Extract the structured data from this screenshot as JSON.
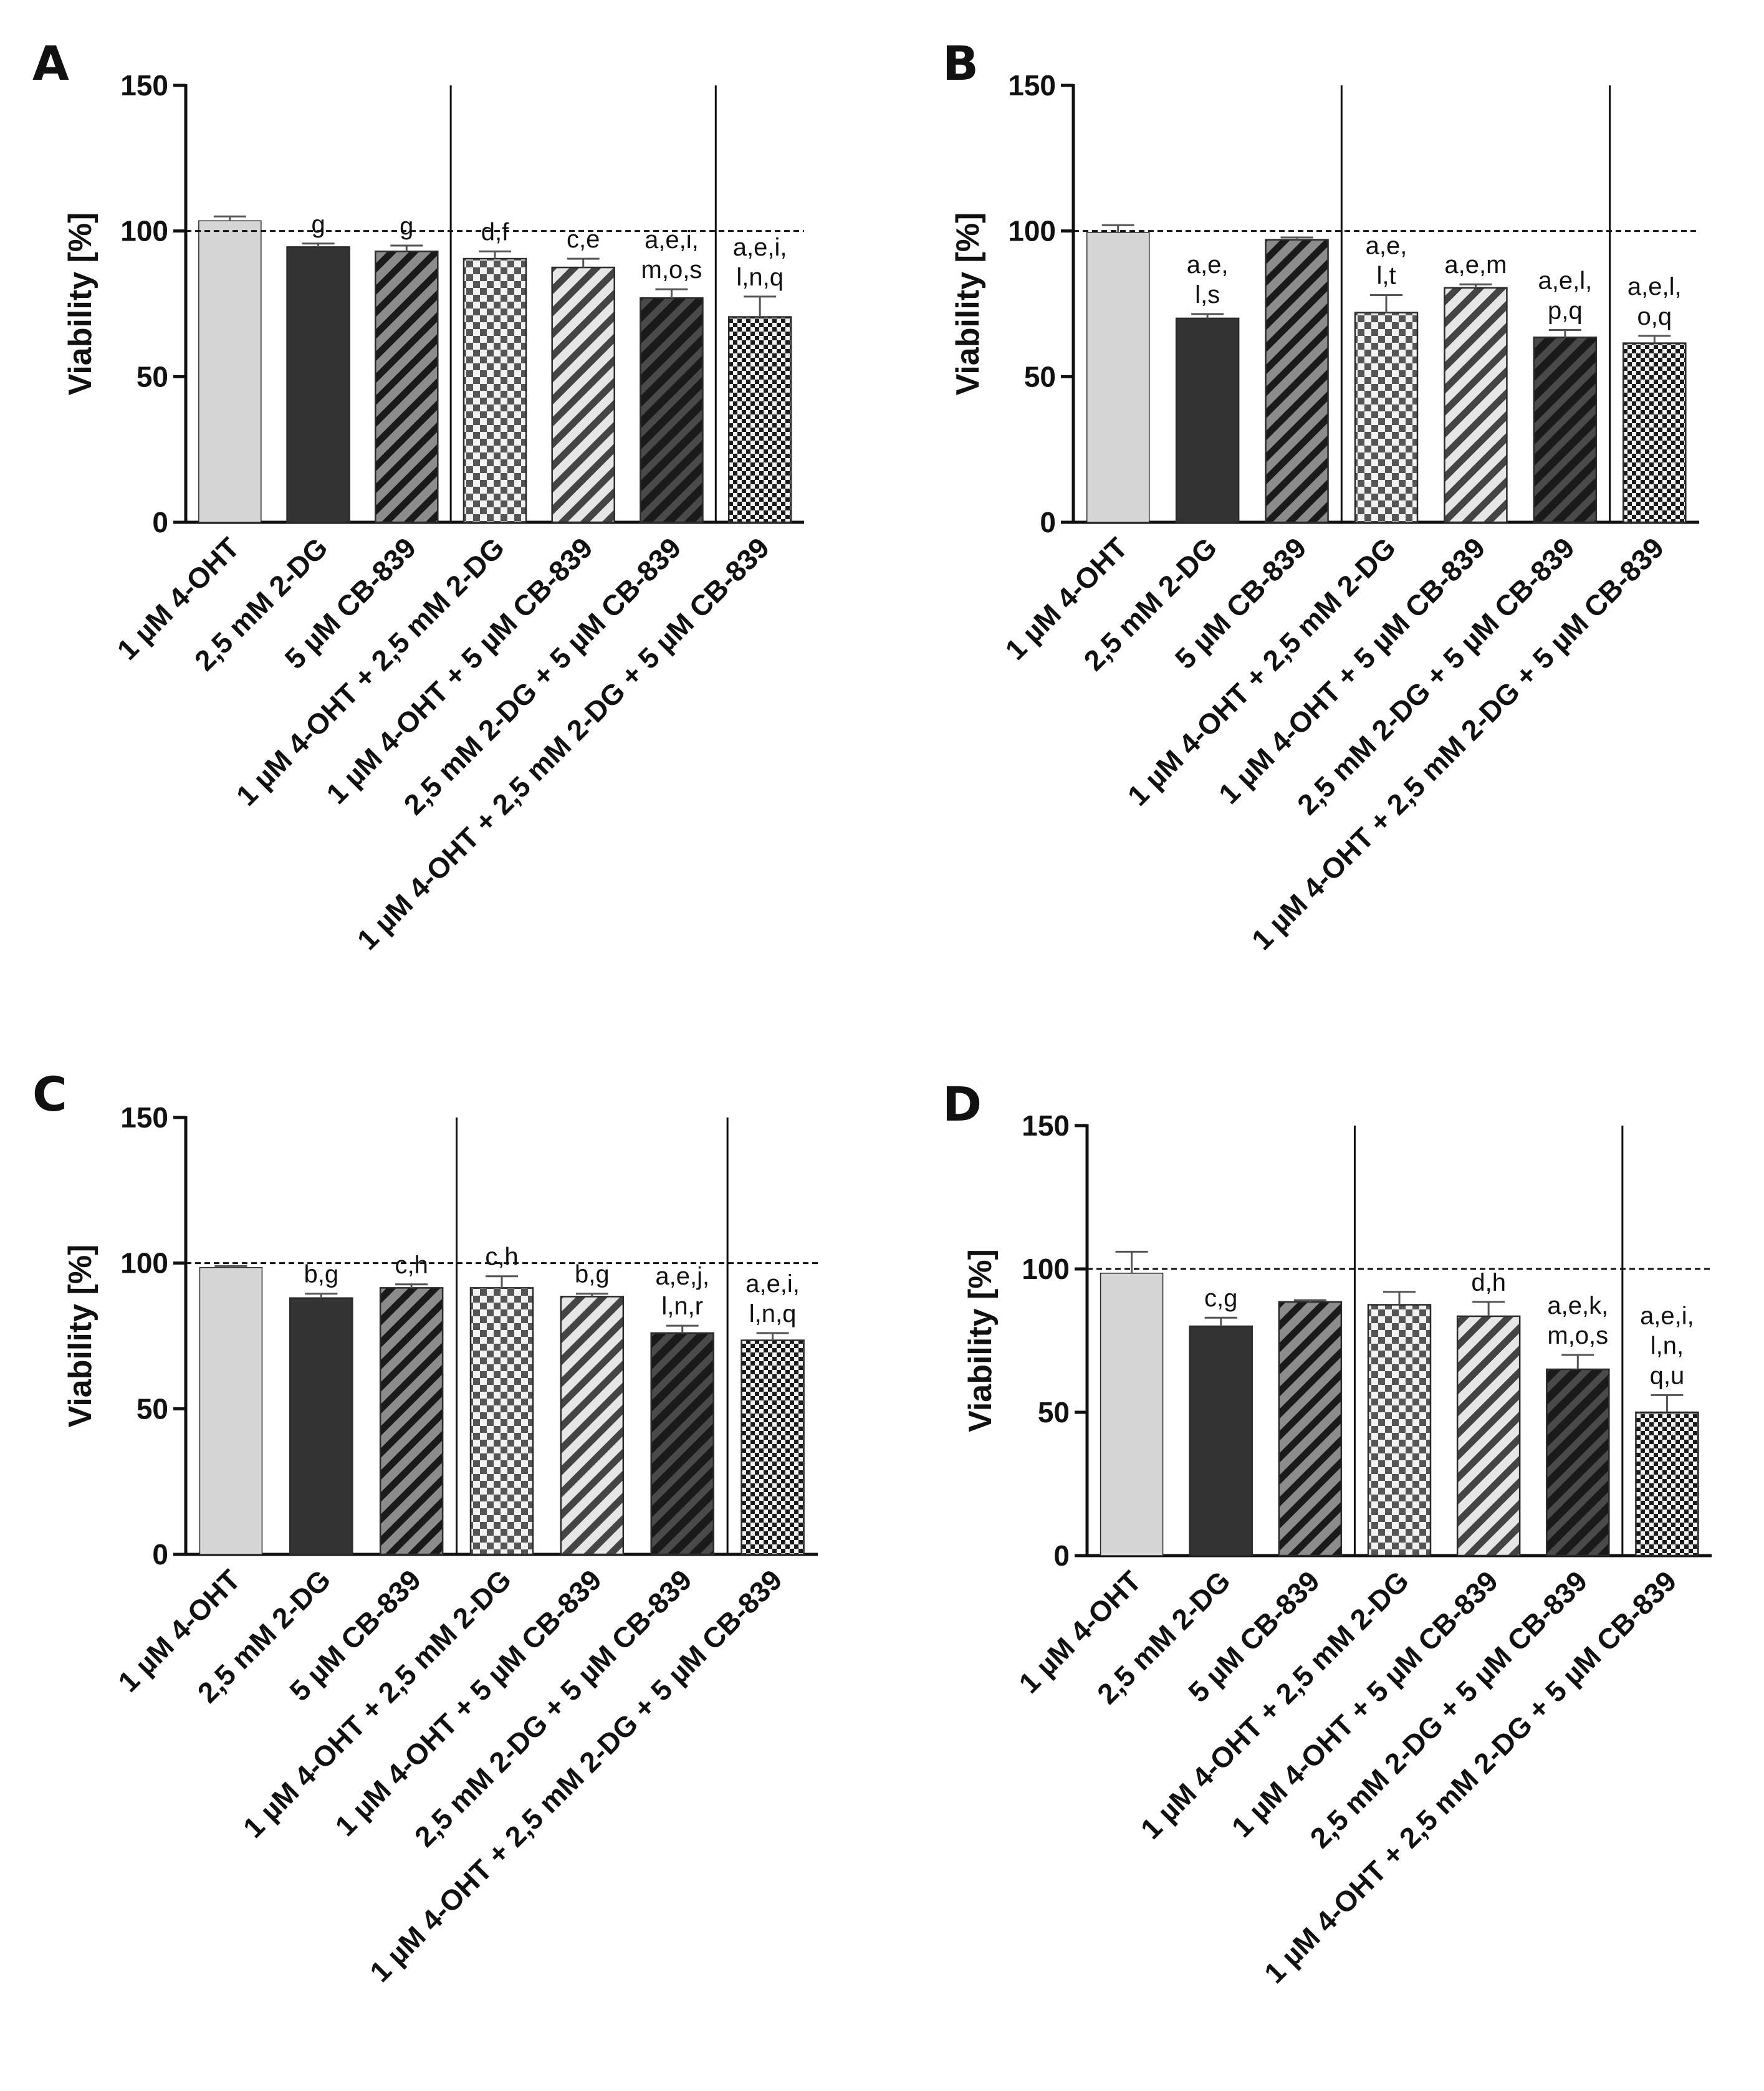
{
  "figure": {
    "colors": {
      "axis": "#111111",
      "light_gray": "#d6d6d6",
      "dark": "#333333",
      "mid_gray": "#8c8c8c",
      "checker_light": "#f2f2f2",
      "checker_dark": "#555555",
      "stripe_light": "#e6e6e6",
      "stripe_dark": "#1a1a1a"
    }
  },
  "chart_data": [
    {
      "panel": "A",
      "type": "bar",
      "ylabel": "Viability [%]",
      "ylim": [
        0,
        150
      ],
      "yticks": [
        0,
        50,
        100,
        150
      ],
      "reference_line": 100,
      "categories": [
        "1 µM 4-OHT",
        "2,5 mM 2-DG",
        "5 µM CB-839",
        "1 µM 4-OHT + 2,5 mM 2-DG",
        "1 µM 4-OHT + 5 µM CB-839",
        "2,5 mM 2-DG + 5 µM CB-839",
        "1 µM 4-OHT + 2,5 mM 2-DG + 5 µM CB-839"
      ],
      "values": [
        103.5,
        94.5,
        93,
        90.5,
        87.5,
        77,
        70.5
      ],
      "errors": [
        1.5,
        1.2,
        2,
        2.5,
        3,
        3,
        7
      ],
      "annotations": [
        [],
        [
          "g"
        ],
        [
          "g"
        ],
        [
          "d,f"
        ],
        [
          "c,e"
        ],
        [
          "a,e,i,",
          "m,o,s"
        ],
        [
          "a,e,i,",
          "l,n,q"
        ]
      ],
      "separators_after": [
        3,
        6
      ]
    },
    {
      "panel": "B",
      "type": "bar",
      "ylabel": "Viability [%]",
      "ylim": [
        0,
        150
      ],
      "yticks": [
        0,
        50,
        100,
        150
      ],
      "reference_line": 100,
      "categories": [
        "1 µM 4-OHT",
        "2,5 mM 2-DG",
        "5 µM CB-839",
        "1 µM 4-OHT + 2,5 mM 2-DG",
        "1 µM 4-OHT + 5 µM CB-839",
        "2,5 mM 2-DG + 5 µM CB-839",
        "1 µM 4-OHT + 2,5 mM 2-DG + 5 µM CB-839"
      ],
      "values": [
        99.5,
        70,
        97,
        72,
        80.5,
        63.5,
        61.5
      ],
      "errors": [
        2.5,
        1.5,
        0.8,
        6,
        1.2,
        2.5,
        2.5
      ],
      "annotations": [
        [],
        [
          "a,e,",
          "l,s"
        ],
        [],
        [
          "a,e,",
          "l,t"
        ],
        [
          "a,e,m"
        ],
        [
          "a,e,l,",
          "p,q"
        ],
        [
          "a,e,l,",
          "o,q"
        ]
      ],
      "separators_after": [
        3,
        6
      ]
    },
    {
      "panel": "C",
      "type": "bar",
      "ylabel": "Viability [%]",
      "ylim": [
        0,
        150
      ],
      "yticks": [
        0,
        50,
        100,
        150
      ],
      "reference_line": 100,
      "categories": [
        "1 µM 4-OHT",
        "2,5 mM 2-DG",
        "5 µM CB-839",
        "1 µM 4-OHT + 2,5 mM 2-DG",
        "1 µM 4-OHT + 5 µM CB-839",
        "2,5 mM 2-DG + 5 µM CB-839",
        "1 µM 4-OHT + 2,5 mM 2-DG + 5 µM CB-839"
      ],
      "values": [
        98.5,
        88,
        91.5,
        91.5,
        88.5,
        76,
        73.5
      ],
      "errors": [
        0.5,
        1.5,
        1.2,
        4,
        1,
        2.5,
        2.5
      ],
      "annotations": [
        [],
        [
          "b,g"
        ],
        [
          "c,h"
        ],
        [
          "c,h"
        ],
        [
          "b,g"
        ],
        [
          "a,e,j,",
          "l,n,r"
        ],
        [
          "a,e,i,",
          "l,n,q"
        ]
      ],
      "separators_after": [
        3,
        6
      ]
    },
    {
      "panel": "D",
      "type": "bar",
      "ylabel": "Viability [%]",
      "ylim": [
        0,
        150
      ],
      "yticks": [
        0,
        50,
        100,
        150
      ],
      "reference_line": 100,
      "categories": [
        "1 µM 4-OHT",
        "2,5 mM 2-DG",
        "5 µM CB-839",
        "1 µM 4-OHT + 2,5 mM 2-DG",
        "1 µM 4-OHT + 5 µM CB-839",
        "2,5 mM 2-DG + 5 µM CB-839",
        "1 µM 4-OHT + 2,5 mM 2-DG + 5 µM CB-839"
      ],
      "values": [
        98.5,
        80,
        88.5,
        87.5,
        83.5,
        65,
        50
      ],
      "errors": [
        7.5,
        3,
        0.6,
        4.5,
        5,
        5,
        6
      ],
      "annotations": [
        [],
        [
          "c,g"
        ],
        [],
        [],
        [
          "d,h"
        ],
        [
          "a,e,k,",
          "m,o,s"
        ],
        [
          "a,e,i,",
          "l,n,",
          "q,u"
        ]
      ],
      "separators_after": [
        3,
        6
      ]
    }
  ]
}
